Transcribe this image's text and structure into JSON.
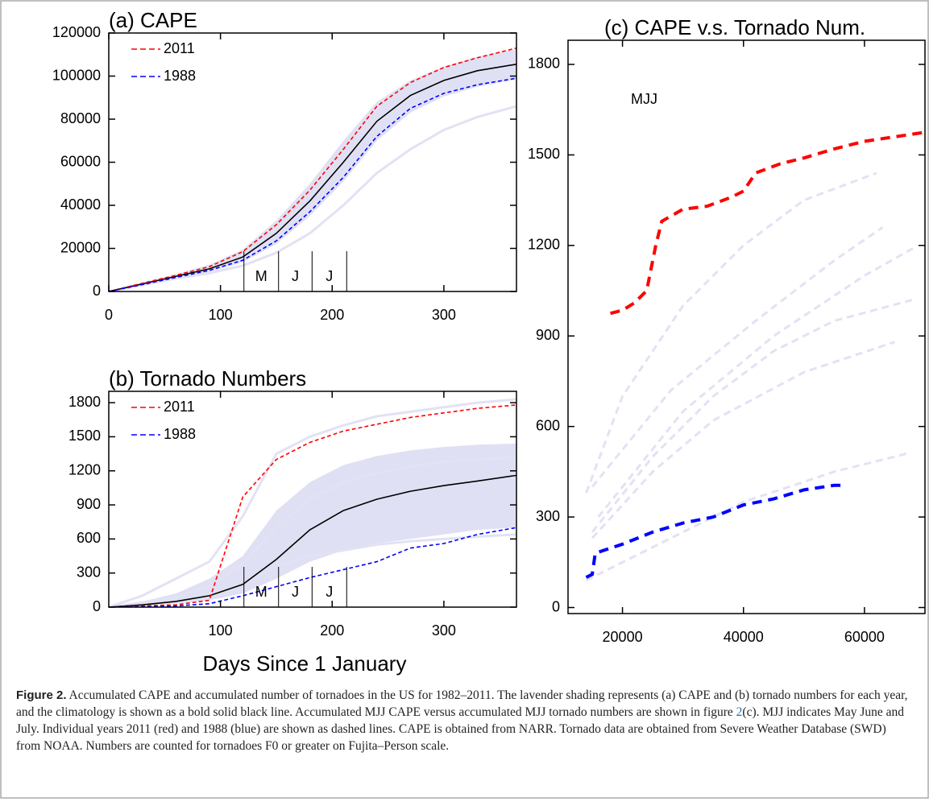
{
  "chart_data": [
    {
      "type": "line",
      "title": "(a) CAPE",
      "x": [
        0,
        30,
        60,
        90,
        120,
        150,
        180,
        210,
        240,
        270,
        300,
        330,
        365
      ],
      "xlim": [
        0,
        365
      ],
      "ylim": [
        0,
        120000
      ],
      "xticks": [
        0,
        100,
        200,
        300
      ],
      "yticks": [
        0,
        20000,
        40000,
        60000,
        80000,
        100000,
        120000
      ],
      "legend": "upper left",
      "band": {
        "color": "#e0e0f4",
        "upper": [
          0,
          4200,
          8000,
          12500,
          19500,
          33000,
          50000,
          70000,
          88000,
          98000,
          104500,
          109000,
          112500
        ],
        "lower": [
          0,
          3000,
          6000,
          9000,
          13500,
          22000,
          35000,
          51000,
          70000,
          83000,
          90500,
          95000,
          98500
        ]
      },
      "month_markers": {
        "x": [
          121,
          152,
          182,
          213
        ],
        "labels": [
          "M",
          "J",
          "J"
        ]
      },
      "series": [
        {
          "color": "#e2e2f4",
          "dashed": false,
          "width": 3,
          "values": [
            0,
            3000,
            6000,
            8500,
            12000,
            18000,
            27000,
            40000,
            55000,
            66000,
            75000,
            81000,
            86000
          ]
        },
        {
          "color": "#000000",
          "dashed": false,
          "width": 1.6,
          "values": [
            0,
            3500,
            7000,
            10500,
            16000,
            27000,
            42000,
            60000,
            79000,
            91000,
            98000,
            102500,
            105500
          ]
        },
        {
          "name": "2011",
          "color": "#ff0000",
          "dashed": true,
          "width": 1.6,
          "values": [
            0,
            3800,
            7500,
            11500,
            18500,
            31000,
            47000,
            66000,
            86000,
            97000,
            104000,
            108500,
            113000
          ]
        },
        {
          "name": "1988",
          "color": "#0000ff",
          "dashed": true,
          "width": 1.6,
          "values": [
            0,
            3200,
            6500,
            9800,
            14500,
            23500,
            37000,
            53000,
            72000,
            85000,
            92000,
            96000,
            99000
          ]
        }
      ]
    },
    {
      "type": "line",
      "title": "(b) Tornado Numbers",
      "xlabel": "Days Since 1 January",
      "x": [
        0,
        30,
        60,
        90,
        120,
        150,
        180,
        210,
        240,
        270,
        300,
        330,
        365
      ],
      "xlim": [
        0,
        365
      ],
      "ylim": [
        0,
        1900
      ],
      "xticks": [
        100,
        200,
        300
      ],
      "yticks": [
        0,
        300,
        600,
        900,
        1200,
        1500,
        1800
      ],
      "legend": "upper left",
      "band": {
        "color": "#e0e0f4",
        "upper": [
          0,
          50,
          120,
          250,
          450,
          850,
          1100,
          1250,
          1330,
          1380,
          1410,
          1430,
          1440
        ],
        "lower": [
          0,
          10,
          30,
          60,
          120,
          250,
          400,
          500,
          560,
          600,
          640,
          680,
          700
        ]
      },
      "month_markers": {
        "x": [
          121,
          152,
          182,
          213
        ],
        "labels": [
          "M",
          "J",
          "J"
        ]
      },
      "series": [
        {
          "color": "#e2e2f4",
          "dashed": false,
          "width": 3,
          "values": [
            0,
            100,
            250,
            400,
            800,
            1350,
            1500,
            1600,
            1680,
            1720,
            1760,
            1800,
            1830
          ]
        },
        {
          "color": "#e2e2f4",
          "dashed": false,
          "width": 3,
          "values": [
            0,
            40,
            90,
            180,
            380,
            700,
            950,
            1100,
            1180,
            1240,
            1280,
            1300,
            1320
          ]
        },
        {
          "color": "#e2e2f4",
          "dashed": false,
          "width": 3,
          "values": [
            0,
            20,
            50,
            100,
            200,
            350,
            450,
            500,
            550,
            580,
            600,
            620,
            640
          ]
        },
        {
          "color": "#000000",
          "dashed": false,
          "width": 1.6,
          "values": [
            0,
            20,
            50,
            100,
            200,
            420,
            680,
            850,
            950,
            1020,
            1070,
            1110,
            1160
          ]
        },
        {
          "name": "2011",
          "color": "#ff0000",
          "dashed": true,
          "width": 1.6,
          "values": [
            0,
            10,
            20,
            60,
            970,
            1300,
            1450,
            1550,
            1610,
            1670,
            1710,
            1750,
            1780
          ]
        },
        {
          "name": "1988",
          "color": "#0000ff",
          "dashed": true,
          "width": 1.6,
          "values": [
            0,
            5,
            10,
            30,
            100,
            180,
            260,
            330,
            400,
            520,
            560,
            640,
            700
          ]
        }
      ]
    },
    {
      "type": "line",
      "title": "(c) CAPE v.s. Tornado Num.",
      "annotation": "MJJ",
      "xlim": [
        11000,
        70000
      ],
      "ylim": [
        -20,
        1880
      ],
      "xticks": [
        20000,
        40000,
        60000
      ],
      "yticks": [
        0,
        300,
        600,
        900,
        1200,
        1500,
        1800
      ],
      "series": [
        {
          "color": "#e2e2f4",
          "dashed": true,
          "width": 3,
          "x": [
            14000,
            20000,
            30000,
            40000,
            50000,
            62000
          ],
          "values": [
            380,
            700,
            1000,
            1200,
            1350,
            1440
          ]
        },
        {
          "color": "#e2e2f4",
          "dashed": true,
          "width": 3,
          "x": [
            15000,
            25000,
            35000,
            45000,
            55000,
            68000
          ],
          "values": [
            250,
            500,
            700,
            850,
            950,
            1020
          ]
        },
        {
          "color": "#e2e2f4",
          "dashed": true,
          "width": 3,
          "x": [
            14000,
            25000,
            40000,
            55000,
            67000
          ],
          "values": [
            90,
            200,
            350,
            450,
            510
          ]
        },
        {
          "color": "#e2e2f4",
          "dashed": true,
          "width": 3,
          "x": [
            15000,
            25000,
            35000,
            50000,
            65000
          ],
          "values": [
            230,
            450,
            620,
            780,
            880
          ]
        },
        {
          "color": "#e2e2f4",
          "dashed": true,
          "width": 3,
          "x": [
            16000,
            30000,
            45000,
            60000,
            68000
          ],
          "values": [
            300,
            650,
            900,
            1100,
            1190
          ]
        },
        {
          "color": "#e2e2f4",
          "dashed": true,
          "width": 3,
          "x": [
            15000,
            28000,
            42000,
            55000,
            63000
          ],
          "values": [
            400,
            720,
            950,
            1150,
            1260
          ]
        },
        {
          "color": "#ff0000",
          "dashed": true,
          "width": 4,
          "x": [
            18000,
            20000,
            22000,
            24000,
            25500,
            26500,
            30000,
            34000,
            38000,
            40000,
            42000,
            46000,
            50000,
            55000,
            60000,
            65000,
            70000
          ],
          "values": [
            975,
            985,
            1010,
            1050,
            1200,
            1280,
            1320,
            1330,
            1360,
            1380,
            1440,
            1470,
            1490,
            1520,
            1545,
            1560,
            1575
          ]
        },
        {
          "color": "#0000ff",
          "dashed": true,
          "width": 4,
          "x": [
            14000,
            15000,
            15500,
            20000,
            25000,
            30000,
            35000,
            40000,
            45000,
            50000,
            55000,
            57000
          ],
          "values": [
            100,
            110,
            180,
            210,
            250,
            280,
            300,
            340,
            360,
            390,
            405,
            405
          ]
        }
      ]
    }
  ],
  "caption": {
    "label": "Figure 2.",
    "text_before": "Accumulated CAPE and accumulated number of tornadoes in the US for 1982–2011. The lavender shading represents (a) CAPE and (b) tornado numbers for each year, and the climatology is shown as a bold solid black line. Accumulated MJJ CAPE versus accumulated MJJ tornado numbers are shown in figure ",
    "ref": "2",
    "text_after": "(c). MJJ indicates May June and July. Individual years 2011 (red) and 1988 (blue) are shown as dashed lines. CAPE is obtained from NARR. Tornado data are obtained from Severe Weather Database (SWD) from NOAA. Numbers are counted for tornadoes F0 or greater on Fujita–Person scale."
  }
}
